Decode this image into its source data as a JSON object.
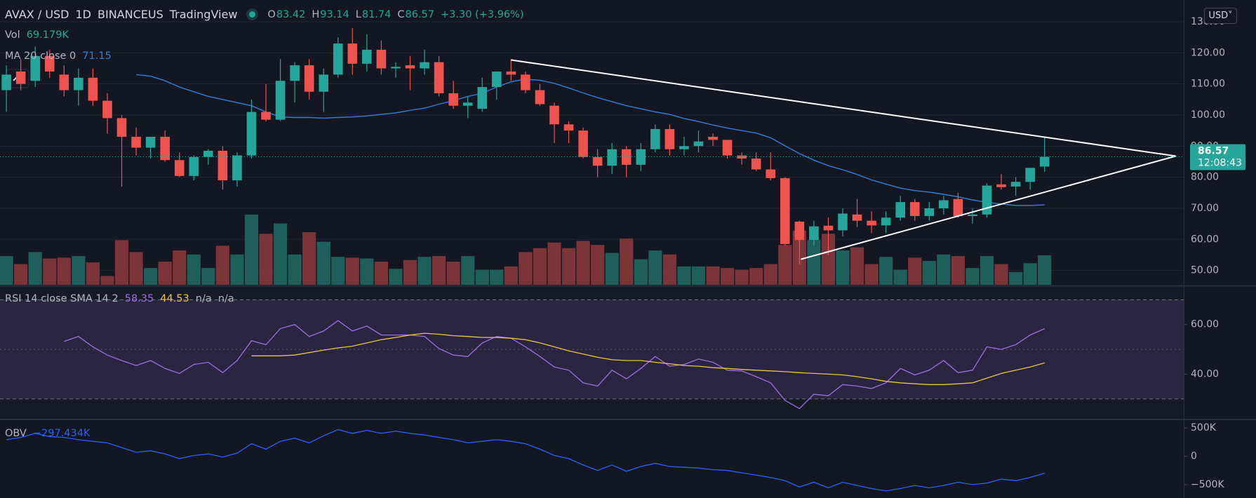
{
  "chart_data": [
    {
      "type": "candlestick",
      "title": [
        "AVAX / USD",
        "1D",
        "BINANCEUS",
        "TradingView"
      ],
      "header_keys": [
        "O",
        "H",
        "L",
        "C"
      ],
      "change": "+3.30 (+3.96%)",
      "currency": "USD",
      "countdown": "12:08:43",
      "volume_title": "Vol",
      "volume_label": "69.179K",
      "ma_title": "MA 20 close 0",
      "up_color": "#26a69a",
      "down_color": "#ef5350",
      "vol_up_color": "#1f5f5b",
      "vol_down_color": "#7b3437",
      "ma_color": "#2f7fd8",
      "trendline_color": "#ffffff",
      "ylim": [
        45.4,
        137
      ],
      "yticks": [
        {
          "value": 50,
          "label": "50.00"
        },
        {
          "value": 60,
          "label": "60.00"
        },
        {
          "value": 70,
          "label": "70.00"
        },
        {
          "value": 80,
          "label": "80.00"
        },
        {
          "value": 90,
          "label": "90.00"
        },
        {
          "value": 100,
          "label": "100.00"
        },
        {
          "value": 110,
          "label": "110.00"
        },
        {
          "value": 120,
          "label": "120.00"
        },
        {
          "value": 130,
          "label": "130.00"
        }
      ],
      "grid": true,
      "open": [
        108,
        114,
        111,
        119,
        113,
        108,
        112,
        104.6,
        99,
        93,
        89.5,
        93,
        85.5,
        80.4,
        86.5,
        88.5,
        79,
        87,
        101,
        98.5,
        111,
        116,
        107.5,
        113,
        123,
        116.5,
        121,
        115,
        116,
        115,
        117,
        107,
        103,
        102,
        109,
        114,
        113,
        108,
        103,
        97,
        95,
        86.5,
        83.7,
        89,
        84,
        89,
        95.5,
        89,
        90,
        93,
        92,
        87,
        86,
        82.5,
        79.7,
        65.7,
        59.8,
        64.4,
        62.9,
        68,
        66,
        64.5,
        67,
        72,
        67.5,
        70,
        73,
        67.5,
        68,
        77.7,
        77,
        78.5,
        83.42
      ],
      "high": [
        116,
        118,
        122,
        121,
        116,
        115,
        115,
        107,
        100,
        96,
        93,
        95,
        88,
        87,
        89,
        90,
        88,
        105,
        110,
        118,
        117,
        118,
        115,
        125,
        128,
        126,
        124,
        117,
        119,
        121,
        119,
        111,
        106,
        112,
        114,
        118,
        114,
        110,
        104,
        98,
        96,
        89,
        91,
        90,
        91,
        97,
        97,
        93,
        95,
        94,
        92,
        88,
        88,
        88,
        80,
        66,
        66,
        67,
        70,
        73,
        69,
        69,
        74,
        73,
        72,
        74,
        75,
        70,
        78,
        81,
        80,
        83,
        93.14
      ],
      "low": [
        101,
        108,
        109,
        112,
        106,
        103,
        103,
        94,
        77,
        87,
        86,
        85,
        80,
        79,
        84,
        76,
        77,
        86,
        98,
        98,
        104,
        105,
        101,
        112,
        113,
        114,
        113,
        112,
        108,
        113,
        106,
        102,
        99,
        101,
        105,
        111,
        107,
        103,
        91,
        91,
        86,
        80,
        81,
        80,
        82,
        88,
        87,
        87,
        88,
        90,
        86,
        84,
        82,
        79,
        58,
        52,
        58,
        55,
        61,
        64,
        62,
        62,
        66,
        66,
        66,
        68,
        67,
        65,
        67,
        76,
        74,
        76,
        81.74
      ],
      "close": [
        113,
        110,
        119,
        114,
        108,
        112,
        104.6,
        99,
        93,
        89.5,
        93,
        85.5,
        80.4,
        86.5,
        88.5,
        79,
        87,
        101,
        98.5,
        111,
        116,
        107.5,
        113,
        123,
        116.5,
        121,
        115,
        115.5,
        115,
        117,
        107,
        103,
        104,
        109,
        114,
        113,
        108,
        103.5,
        97,
        95,
        86.5,
        83.7,
        89,
        84,
        89,
        95.5,
        89,
        90,
        91.5,
        92,
        87,
        86,
        82.5,
        79.7,
        58.5,
        59.8,
        64.2,
        62.9,
        68.3,
        66,
        64.5,
        67,
        72,
        67.5,
        70,
        72.6,
        67.5,
        68,
        77.3,
        76.8,
        78.5,
        83,
        86.57
      ],
      "volume": [
        67300,
        48600,
        76700,
        61700,
        63600,
        67300,
        52400,
        20600,
        104700,
        76700,
        39300,
        54200,
        80400,
        71100,
        39300,
        91600,
        71100,
        164600,
        119700,
        144000,
        71100,
        123400,
        101000,
        65500,
        63600,
        61700,
        54200,
        37400,
        58000,
        65500,
        67300,
        54200,
        67300,
        35500,
        35500,
        43000,
        76700,
        86000,
        99100,
        86000,
        102900,
        93500,
        74800,
        108500,
        59800,
        80400,
        71100,
        43000,
        43000,
        43000,
        39300,
        35500,
        39300,
        48600,
        93500,
        127200,
        104700,
        119700,
        80400,
        87900,
        48600,
        65500,
        35500,
        63600,
        56100,
        71100,
        67300,
        39300,
        67300,
        48600,
        29900,
        50500,
        69179
      ],
      "ma": [
        null,
        null,
        null,
        null,
        null,
        null,
        null,
        null,
        null,
        113,
        112.5,
        111,
        109,
        107.5,
        106,
        105,
        104,
        103,
        101,
        99.4,
        99.2,
        99.2,
        99,
        99.2,
        99.4,
        99.7,
        100.2,
        100.7,
        101.5,
        102.2,
        103.5,
        104.6,
        106,
        107,
        109,
        110.7,
        111.5,
        111.2,
        110.2,
        108.7,
        107.1,
        105.6,
        104.3,
        103,
        102,
        101,
        100.2,
        98.9,
        97.9,
        96.8,
        95.8,
        95,
        94.2,
        92.7,
        90.1,
        87.6,
        85.5,
        83.7,
        82.4,
        80.9,
        79.1,
        77.8,
        76.5,
        75.7,
        75.2,
        74.5,
        73.7,
        72.7,
        71.9,
        71.4,
        70.9,
        70.9,
        71.15
      ],
      "trendlines": [
        {
          "from": [
            35,
            117.7
          ],
          "to": [
            81.1,
            86.8
          ]
        },
        {
          "from": [
            55.1,
            53.6
          ],
          "to": [
            81.1,
            86.8
          ]
        }
      ]
    },
    {
      "type": "line",
      "label": "RSI 14 close SMA 14 2",
      "extra_labels": [
        "n/a",
        "n/a"
      ],
      "ylim": [
        22.3,
        75.2
      ],
      "yticks": [
        {
          "value": 40,
          "label": "40.00"
        },
        {
          "value": 60,
          "label": "60.00"
        }
      ],
      "upper": 70,
      "middle": 50,
      "lower": 30,
      "band_color": "#2a2540",
      "series": [
        {
          "color": "#9c6fe0",
          "values": [
            null,
            null,
            null,
            null,
            53.2,
            55.2,
            51,
            47.7,
            45.5,
            43.5,
            45.5,
            42.3,
            40.3,
            43.9,
            44.8,
            40.6,
            45.5,
            53.5,
            51.9,
            58.4,
            60,
            55.2,
            57.4,
            61.6,
            57.4,
            59.4,
            55.8,
            55.8,
            55.8,
            55.2,
            50.3,
            47.7,
            47.1,
            52.6,
            55.2,
            54.5,
            51,
            47.1,
            42.9,
            41.6,
            36.5,
            35.2,
            41.6,
            38.1,
            42.3,
            47.1,
            43.2,
            43.9,
            46.1,
            44.8,
            41.6,
            41.3,
            39,
            36.5,
            29.4,
            26.1,
            31.9,
            31.3,
            35.8,
            35.2,
            34.2,
            36.5,
            42.3,
            39.7,
            41.6,
            45.5,
            40.6,
            41.6,
            51,
            50,
            51.9,
            55.8,
            58.35
          ]
        },
        {
          "color": "#e8c83e",
          "values": [
            null,
            null,
            null,
            null,
            null,
            null,
            null,
            null,
            null,
            null,
            null,
            null,
            null,
            null,
            null,
            null,
            null,
            47.4,
            47.4,
            47.4,
            47.7,
            48.7,
            49.7,
            50.6,
            51.3,
            52.6,
            53.9,
            54.8,
            55.8,
            56.5,
            56.1,
            55.5,
            55.2,
            54.8,
            54.8,
            54.5,
            53.9,
            52.6,
            51,
            49.4,
            48.1,
            46.8,
            45.8,
            45.5,
            45.5,
            44.8,
            44.2,
            43.5,
            43.2,
            42.6,
            42.3,
            41.9,
            41.6,
            41.3,
            41,
            40.6,
            40.3,
            40,
            39.7,
            39,
            38.1,
            37.1,
            36.5,
            36.1,
            35.8,
            35.8,
            36.1,
            36.5,
            38.4,
            40.3,
            41.6,
            42.9,
            44.53
          ]
        }
      ]
    },
    {
      "type": "line",
      "label": "OBV",
      "value_label": "−297.434K",
      "ylim": [
        -736,
        625
      ],
      "yticks": [
        {
          "value": 500,
          "label": "500K"
        },
        0,
        {
          "value": -500,
          "label": "−500K"
        }
      ],
      "series": [
        {
          "color": "#2962ff",
          "values": [
            292,
            333,
            403,
            347,
            333,
            292,
            264,
            236,
            153,
            69,
            97,
            42,
            -42,
            14,
            42,
            -14,
            56,
            222,
            125,
            264,
            319,
            236,
            361,
            472,
            403,
            458,
            403,
            444,
            403,
            375,
            333,
            292,
            236,
            264,
            292,
            264,
            222,
            125,
            14,
            -42,
            -153,
            -250,
            -153,
            -264,
            -181,
            -125,
            -181,
            -194,
            -208,
            -236,
            -250,
            -292,
            -333,
            -375,
            -431,
            -542,
            -458,
            -556,
            -458,
            -514,
            -569,
            -611,
            -569,
            -514,
            -556,
            -514,
            -458,
            -500,
            -472,
            -403,
            -431,
            -375,
            -297.434
          ]
        }
      ]
    }
  ]
}
